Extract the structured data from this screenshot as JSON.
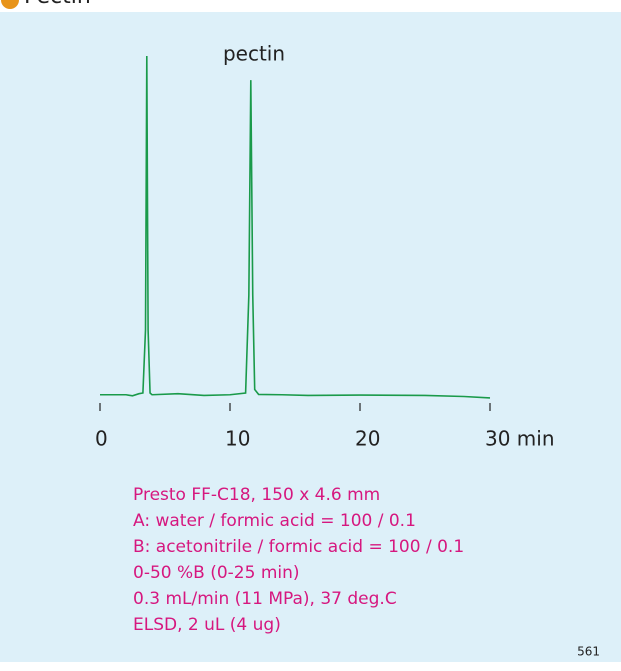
{
  "chart_data": {
    "type": "line",
    "title": "Pectin",
    "x": [
      0,
      2,
      2.5,
      3.0,
      3.3,
      3.5,
      3.6,
      3.7,
      3.85,
      4,
      6,
      8,
      10,
      11.2,
      11.45,
      11.6,
      11.75,
      11.9,
      12.2,
      14,
      16,
      20,
      25,
      28,
      30
    ],
    "series": [
      {
        "color": "#1a9a4a",
        "values": [
          1.5,
          1.5,
          1.2,
          1.8,
          2,
          20,
          98.3,
          20,
          2,
          1.5,
          1.8,
          1.3,
          1.5,
          2,
          30,
          91.4,
          30,
          3,
          1.6,
          1.5,
          1.3,
          1.4,
          1.3,
          1.0,
          0.6
        ]
      }
    ],
    "xlim": [
      0,
      30
    ],
    "xticks": [
      0,
      10,
      20,
      {
        "value": 30,
        "label": "30 min"
      }
    ],
    "ylim": [
      0,
      100
    ],
    "annotations": [
      "pectin"
    ],
    "conditions": [
      "Presto FF-C18, 150 x 4.6 mm",
      "A: water / formic acid = 100 / 0.1",
      "B: acetonitrile / formic acid = 100 / 0.1",
      "0-50 %B (0-25 min)",
      "0.3 mL/min (11 MPa), 37 deg.C",
      "ELSD, 2 uL (4 ug)"
    ],
    "page_number": "561"
  }
}
